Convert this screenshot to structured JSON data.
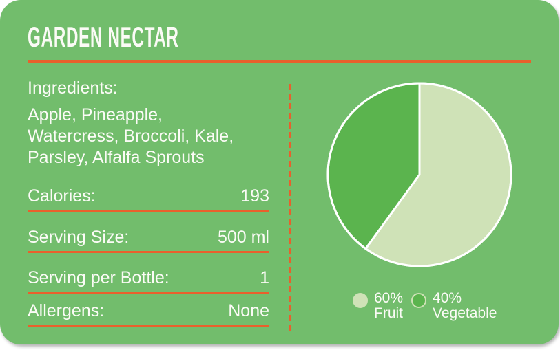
{
  "theme": {
    "card_background": "#72BD6C",
    "accent_orange": "#E9602C",
    "text_white": "#FBFBF6",
    "pie_light_green": "#CFE2B7",
    "pie_dark_green": "#5BB44E",
    "slice_border_white": "#FFFFFF"
  },
  "card": {
    "title": "GARDEN NECTAR",
    "ingredients": {
      "label": "Ingredients:",
      "lines": [
        "Apple, Pineapple,",
        "Watercress, Broccoli, Kale,",
        "Parsley, Alfalfa Sprouts"
      ]
    },
    "facts": [
      {
        "label": "Calories:",
        "value": "193"
      },
      {
        "label": "Serving Size:",
        "value": "500 ml"
      },
      {
        "label": "Serving per Bottle:",
        "value": "1"
      },
      {
        "label": "Allergens:",
        "value": "None"
      }
    ]
  },
  "chart_data": {
    "type": "pie",
    "slices": [
      {
        "name": "Fruit",
        "percent": 60,
        "percent_label": "60%",
        "color": "#CFE2B7"
      },
      {
        "name": "Vegetable",
        "percent": 40,
        "percent_label": "40%",
        "color": "#5BB44E",
        "swatch_outline_color": "#CFE2B7"
      }
    ],
    "start_angle_deg": 0,
    "direction": "clockwise",
    "slice_border_color": "#FFFFFF",
    "legend_position": "bottom-right"
  }
}
